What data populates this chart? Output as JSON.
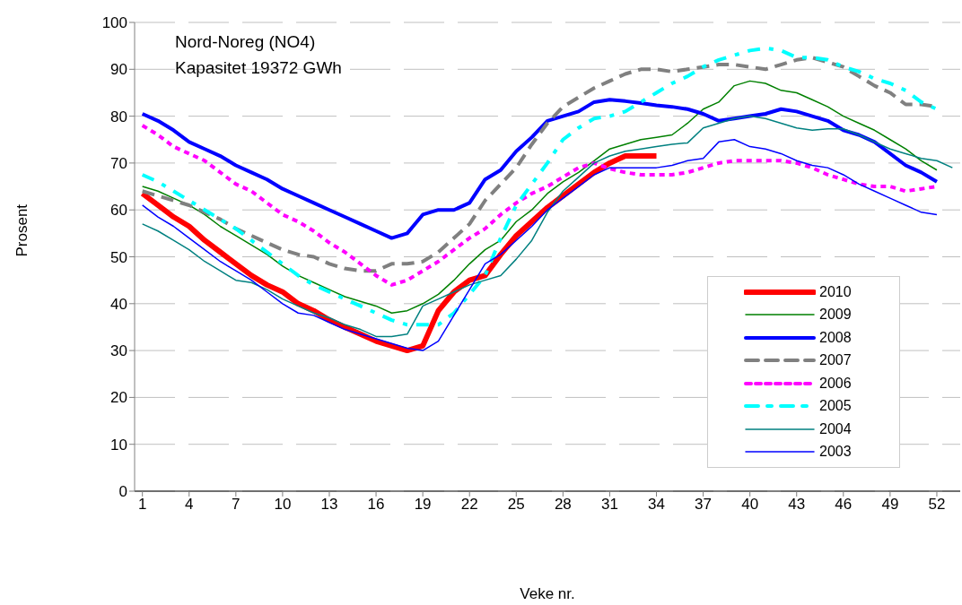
{
  "chart_data": {
    "type": "line",
    "xlabel": "Veke nr.",
    "ylabel": "Prosent",
    "annotations": [
      "Nord-Noreg (NO4)",
      "Kapasitet 19372 GWh"
    ],
    "x": [
      1,
      2,
      3,
      4,
      5,
      6,
      7,
      8,
      9,
      10,
      11,
      12,
      13,
      14,
      15,
      16,
      17,
      18,
      19,
      20,
      21,
      22,
      23,
      24,
      25,
      26,
      27,
      28,
      29,
      30,
      31,
      32,
      33,
      34,
      35,
      36,
      37,
      38,
      39,
      40,
      41,
      42,
      43,
      44,
      45,
      46,
      47,
      48,
      49,
      50,
      51,
      52,
      53
    ],
    "xlim": [
      0.5,
      53.5
    ],
    "xticks": [
      1,
      4,
      7,
      10,
      13,
      16,
      19,
      22,
      25,
      28,
      31,
      34,
      37,
      40,
      43,
      46,
      49,
      52
    ],
    "ylim": [
      0,
      100
    ],
    "yticks": [
      0,
      10,
      20,
      30,
      40,
      50,
      60,
      70,
      80,
      90,
      100
    ],
    "grid": "y",
    "legend": "bottom right",
    "marker": "none",
    "series": [
      {
        "name": "2010",
        "color": "#ff0000",
        "line_style": "solid",
        "values": [
          63.5,
          61,
          58.5,
          56.5,
          53.5,
          51,
          48.5,
          46,
          44,
          42.5,
          40,
          38.5,
          36.5,
          35,
          33.5,
          32,
          31,
          30,
          31,
          38.5,
          42.5,
          45,
          46,
          50.5,
          54.5,
          57.5,
          60.5,
          63,
          65.5,
          68,
          70,
          71.5,
          71.5,
          71.5,
          null,
          null,
          null,
          null,
          null,
          null,
          null,
          null,
          null,
          null,
          null,
          null,
          null,
          null,
          null,
          null,
          null,
          null,
          null
        ]
      },
      {
        "name": "2009",
        "color": "#008000",
        "line_style": "solid",
        "values": [
          65,
          64,
          62.5,
          61,
          59,
          56.5,
          54.5,
          52.5,
          50.5,
          48,
          46,
          44.5,
          43,
          41.5,
          40.5,
          39.5,
          38,
          38.5,
          40,
          42,
          45,
          48.5,
          51.5,
          53.5,
          57.5,
          60,
          63.5,
          66,
          68,
          70.5,
          73,
          74,
          75,
          75.5,
          76,
          78.5,
          81.5,
          83,
          86.5,
          87.5,
          87,
          85.5,
          85,
          83.5,
          82,
          80,
          78.5,
          77,
          75,
          73,
          70.5,
          68.5,
          null
        ]
      },
      {
        "name": "2008",
        "color": "#0000ff",
        "line_style": "solid",
        "values": [
          80.5,
          79,
          77,
          74.5,
          73,
          71.5,
          69.5,
          68,
          66.5,
          64.5,
          63,
          61.5,
          60,
          58.5,
          57,
          55.5,
          54,
          55,
          59,
          60,
          60,
          61.5,
          66.5,
          68.5,
          72.5,
          75.5,
          79,
          80,
          81,
          83,
          83.5,
          83.2,
          82.8,
          82.3,
          82,
          81.5,
          80.5,
          79,
          79.5,
          80,
          80.5,
          81.5,
          81,
          80,
          79,
          77,
          76,
          74.5,
          72,
          69.5,
          68,
          66,
          null
        ]
      },
      {
        "name": "2007",
        "color": "#808080",
        "line_style": "dashed",
        "values": [
          64,
          63,
          62,
          61,
          59.5,
          58,
          56,
          54.5,
          53,
          51.5,
          50.5,
          50,
          48.5,
          47.5,
          47,
          47,
          48.5,
          48.5,
          49,
          51,
          54,
          57,
          62,
          65.5,
          69,
          74,
          78.5,
          82,
          84,
          86,
          87.5,
          89,
          90,
          90,
          89.5,
          90,
          90.5,
          91,
          91,
          90.5,
          90,
          91,
          92,
          92.5,
          91.5,
          90.5,
          88.5,
          86.5,
          85,
          82.5,
          82.5,
          82,
          null
        ]
      },
      {
        "name": "2006",
        "color": "#ff00ff",
        "line_style": "dotted",
        "values": [
          78,
          76,
          73.5,
          72,
          70.5,
          68,
          65.5,
          64,
          61.5,
          59,
          57.5,
          55.5,
          53,
          51,
          48.5,
          46,
          44,
          45,
          47,
          49,
          51.5,
          54,
          56,
          59,
          61.5,
          63.5,
          65,
          67,
          69,
          70,
          68.8,
          68,
          67.5,
          67.5,
          67.5,
          68,
          69,
          70,
          70.5,
          70.5,
          70.5,
          70.5,
          70,
          69,
          67.5,
          66.5,
          65.5,
          65,
          65,
          64,
          64.5,
          65,
          null
        ]
      },
      {
        "name": "2005",
        "color": "#00ffff",
        "line_style": "dashed",
        "values": [
          67.5,
          66,
          64,
          62,
          60,
          58,
          56,
          53.5,
          51,
          48.5,
          46,
          44,
          42.5,
          41,
          39.5,
          38,
          36.5,
          35.5,
          35.5,
          35.5,
          38,
          42,
          46,
          54,
          61,
          65.5,
          70,
          75,
          77.5,
          79.5,
          80,
          81,
          83,
          85,
          87,
          88.5,
          90.5,
          92,
          93,
          94,
          94.5,
          94,
          92.5,
          92.5,
          92,
          90.5,
          89.5,
          88,
          87,
          85.5,
          83,
          81.5,
          null
        ]
      },
      {
        "name": "2004",
        "color": "#008080",
        "line_style": "solid",
        "values": [
          57,
          55.5,
          53.5,
          51.5,
          49,
          47,
          45,
          44.5,
          43,
          41,
          39.5,
          38,
          37,
          35.5,
          34.5,
          33,
          33,
          33.5,
          39.5,
          41,
          42.5,
          44,
          45,
          46,
          49.5,
          53.5,
          59.5,
          64,
          67,
          70,
          71.5,
          72.5,
          73,
          73.5,
          74,
          74.3,
          77.5,
          78.5,
          79.5,
          80,
          79.5,
          78.5,
          77.5,
          77,
          77.3,
          77.3,
          76,
          74.5,
          73,
          72,
          71,
          70.5,
          69
        ]
      },
      {
        "name": "2003",
        "color": "#0000ff",
        "line_style": "solid",
        "values": [
          61,
          58.5,
          56.5,
          54,
          51.5,
          49,
          47,
          45,
          42.5,
          40,
          38,
          37.5,
          36,
          34.5,
          33.5,
          32.5,
          31.5,
          30.5,
          30,
          32,
          37.5,
          43,
          48.5,
          50.5,
          53.5,
          56.5,
          60,
          62.5,
          65,
          67.5,
          69,
          69,
          69,
          69,
          69.5,
          70.5,
          71,
          74.5,
          75,
          73.5,
          73,
          72,
          70.5,
          69.5,
          69,
          67.5,
          65.5,
          64,
          62.5,
          61,
          59.5,
          59,
          null
        ]
      }
    ]
  }
}
